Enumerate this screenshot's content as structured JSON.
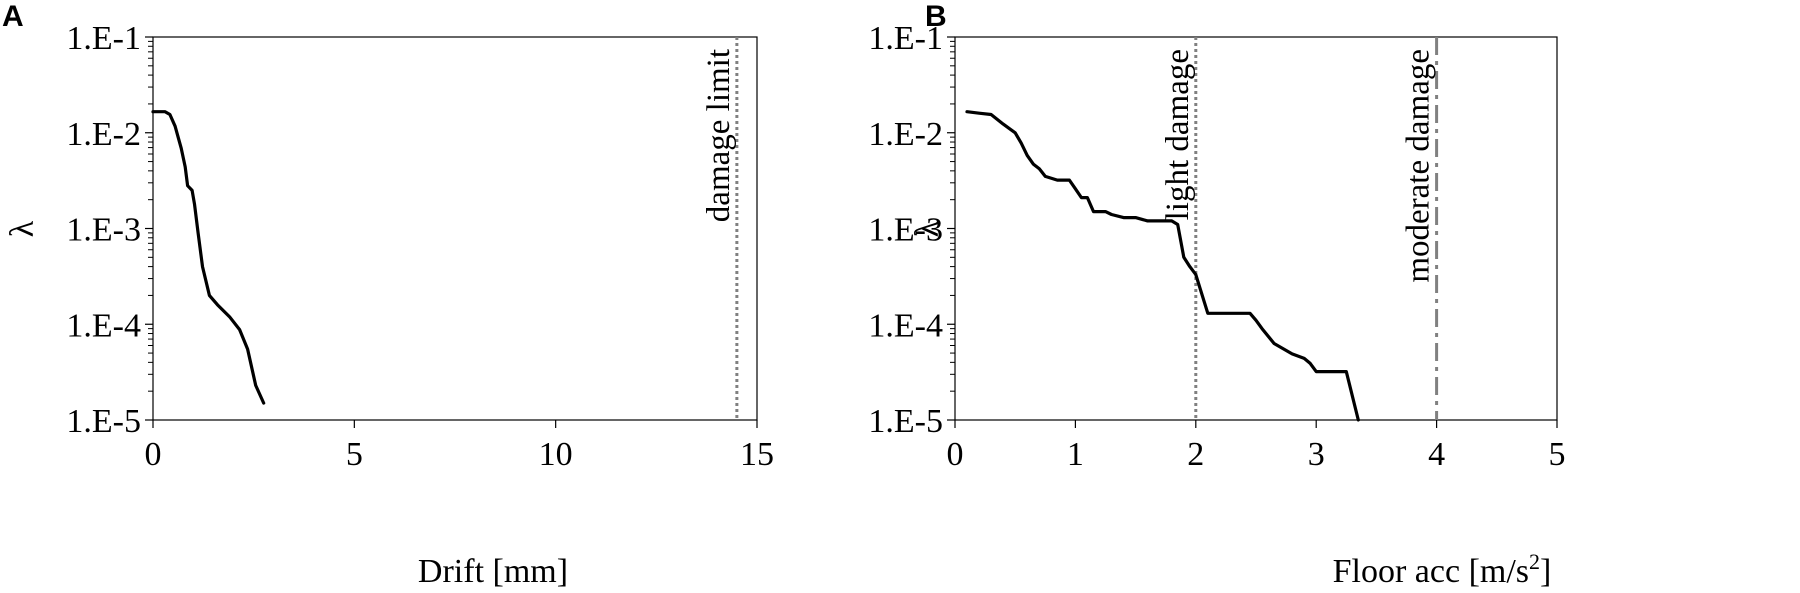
{
  "chart_data": [
    {
      "panel": "A",
      "type": "line",
      "xlabel": "Drift [mm]",
      "ylabel": "λ",
      "xlim": [
        0,
        15
      ],
      "xticks": [
        "0",
        "5",
        "10",
        "15"
      ],
      "ylim": [
        1e-05,
        0.1
      ],
      "yscale": "log",
      "yticks": [
        "1.E-1",
        "1.E-2",
        "1.E-3",
        "1.E-4",
        "1.E-5"
      ],
      "grid": false,
      "series": [
        {
          "x": [
            0,
            0.3,
            0.42,
            0.55,
            0.62,
            0.7,
            0.8,
            0.86,
            0.97,
            1.03,
            1.12,
            1.23,
            1.4,
            1.6,
            1.9,
            2.15,
            2.35,
            2.55,
            2.75
          ],
          "y": [
            0.0166,
            0.0166,
            0.0155,
            0.0117,
            0.0091,
            0.0069,
            0.0044,
            0.0028,
            0.0025,
            0.0018,
            0.0009,
            0.0004,
            0.0002,
            0.00016,
            0.00012,
            8.8e-05,
            5.5e-05,
            2.3e-05,
            1.5e-05
          ],
          "color": "#000000",
          "style": "solid"
        }
      ],
      "reference_lines": [
        {
          "x": 14.5,
          "label": "damage limit",
          "color": "#808080",
          "style": "dotted"
        }
      ]
    },
    {
      "panel": "B",
      "type": "line",
      "xlabel": "Floor acc [m/s",
      "xlabel_sup": "2",
      "xlabel_end": "]",
      "ylabel": "λ",
      "xlim": [
        0,
        5
      ],
      "xticks": [
        "0",
        "1",
        "2",
        "3",
        "4",
        "5"
      ],
      "ylim": [
        1e-05,
        0.1
      ],
      "yscale": "log",
      "yticks": [
        "1.E-1",
        "1.E-2",
        "1.E-3",
        "1.E-4",
        "1.E-5"
      ],
      "grid": false,
      "series": [
        {
          "x": [
            0.1,
            0.2,
            0.3,
            0.4,
            0.5,
            0.55,
            0.6,
            0.65,
            0.7,
            0.75,
            0.85,
            0.95,
            1.0,
            1.05,
            1.1,
            1.15,
            1.25,
            1.3,
            1.4,
            1.5,
            1.6,
            1.7,
            1.8,
            1.85,
            1.9,
            1.95,
            2.0,
            2.1,
            2.45,
            2.5,
            2.55,
            2.65,
            2.8,
            2.9,
            2.95,
            3.0,
            3.25,
            3.35
          ],
          "y": [
            0.0166,
            0.016,
            0.0155,
            0.0123,
            0.01,
            0.0078,
            0.0058,
            0.0047,
            0.0042,
            0.0035,
            0.0032,
            0.0032,
            0.0026,
            0.0021,
            0.0021,
            0.0015,
            0.0015,
            0.0014,
            0.0013,
            0.0013,
            0.0012,
            0.0012,
            0.0012,
            0.0011,
            0.0005,
            0.0004,
            0.00033,
            0.00013,
            0.00013,
            0.00011,
            9e-05,
            6.3e-05,
            4.9e-05,
            4.4e-05,
            3.9e-05,
            3.2e-05,
            3.2e-05,
            1e-05
          ],
          "color": "#000000",
          "style": "solid"
        }
      ],
      "reference_lines": [
        {
          "x": 2.0,
          "label": "light damage",
          "color": "#808080",
          "style": "dotted"
        },
        {
          "x": 4.0,
          "label": "moderate damage",
          "color": "#808080",
          "style": "dashdot"
        }
      ]
    }
  ]
}
